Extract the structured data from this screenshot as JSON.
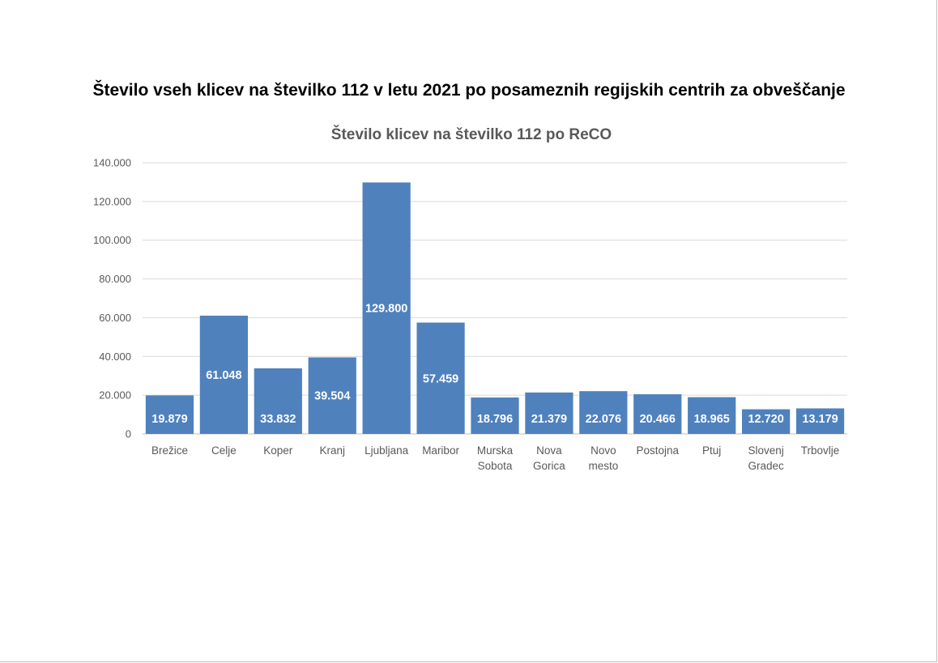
{
  "page": {
    "title": "Število vseh klicev na številko 112 v letu 2021 po posameznih regijskih centrih za obveščanje"
  },
  "chart_data": {
    "type": "bar",
    "title": "Število klicev na številko 112 po ReCO",
    "xlabel": "",
    "ylabel": "",
    "categories": [
      [
        "Brežice"
      ],
      [
        "Celje"
      ],
      [
        "Koper"
      ],
      [
        "Kranj"
      ],
      [
        "Ljubljana"
      ],
      [
        "Maribor"
      ],
      [
        "Murska",
        "Sobota"
      ],
      [
        "Nova",
        "Gorica"
      ],
      [
        "Novo",
        "mesto"
      ],
      [
        "Postojna"
      ],
      [
        "Ptuj"
      ],
      [
        "Slovenj",
        "Gradec"
      ],
      [
        "Trbovlje"
      ]
    ],
    "values": [
      19879,
      61048,
      33832,
      39504,
      129800,
      57459,
      18796,
      21379,
      22076,
      20466,
      18965,
      12720,
      13179
    ],
    "data_labels": [
      "19.879",
      "61.048",
      "33.832",
      "39.504",
      "129.800",
      "57.459",
      "18.796",
      "21.379",
      "22.076",
      "20.466",
      "18.965",
      "12.720",
      "13.179"
    ],
    "ylim": [
      0,
      140000
    ],
    "yticks": [
      0,
      20000,
      40000,
      60000,
      80000,
      100000,
      120000,
      140000
    ],
    "ytick_labels": [
      "0",
      "20.000",
      "40.000",
      "60.000",
      "80.000",
      "100.000",
      "120.000",
      "140.000"
    ],
    "grid": true,
    "legend": "none",
    "bar_color": "#4f81bd",
    "gridline_color": "#d9d9d9",
    "label_color": "#ffffff"
  }
}
